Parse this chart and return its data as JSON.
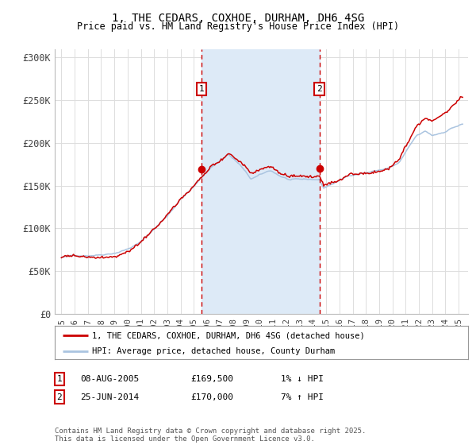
{
  "title": "1, THE CEDARS, COXHOE, DURHAM, DH6 4SG",
  "subtitle": "Price paid vs. HM Land Registry's House Price Index (HPI)",
  "background_color": "#ffffff",
  "plot_bg_color": "#ffffff",
  "grid_color": "#dddddd",
  "hpi_color": "#aac4e0",
  "property_color": "#cc0000",
  "sale1_date_num": 2005.6,
  "sale1_price": 169500,
  "sale2_date_num": 2014.48,
  "sale2_price": 170000,
  "shade_color": "#ddeaf7",
  "legend_line1": "1, THE CEDARS, COXHOE, DURHAM, DH6 4SG (detached house)",
  "legend_line2": "HPI: Average price, detached house, County Durham",
  "table_rows": [
    [
      "1",
      "08-AUG-2005",
      "£169,500",
      "1% ↓ HPI"
    ],
    [
      "2",
      "25-JUN-2014",
      "£170,000",
      "7% ↑ HPI"
    ]
  ],
  "footer": "Contains HM Land Registry data © Crown copyright and database right 2025.\nThis data is licensed under the Open Government Licence v3.0.",
  "ylim": [
    0,
    310000
  ],
  "xlim_start": 1994.5,
  "xlim_end": 2025.7,
  "yticks": [
    0,
    50000,
    100000,
    150000,
    200000,
    250000,
    300000
  ],
  "ytick_labels": [
    "£0",
    "£50K",
    "£100K",
    "£150K",
    "£200K",
    "£250K",
    "£300K"
  ],
  "xtick_years": [
    1995,
    1996,
    1997,
    1998,
    1999,
    2000,
    2001,
    2002,
    2003,
    2004,
    2005,
    2006,
    2007,
    2008,
    2009,
    2010,
    2011,
    2012,
    2013,
    2014,
    2015,
    2016,
    2017,
    2018,
    2019,
    2020,
    2021,
    2022,
    2023,
    2024,
    2025
  ]
}
